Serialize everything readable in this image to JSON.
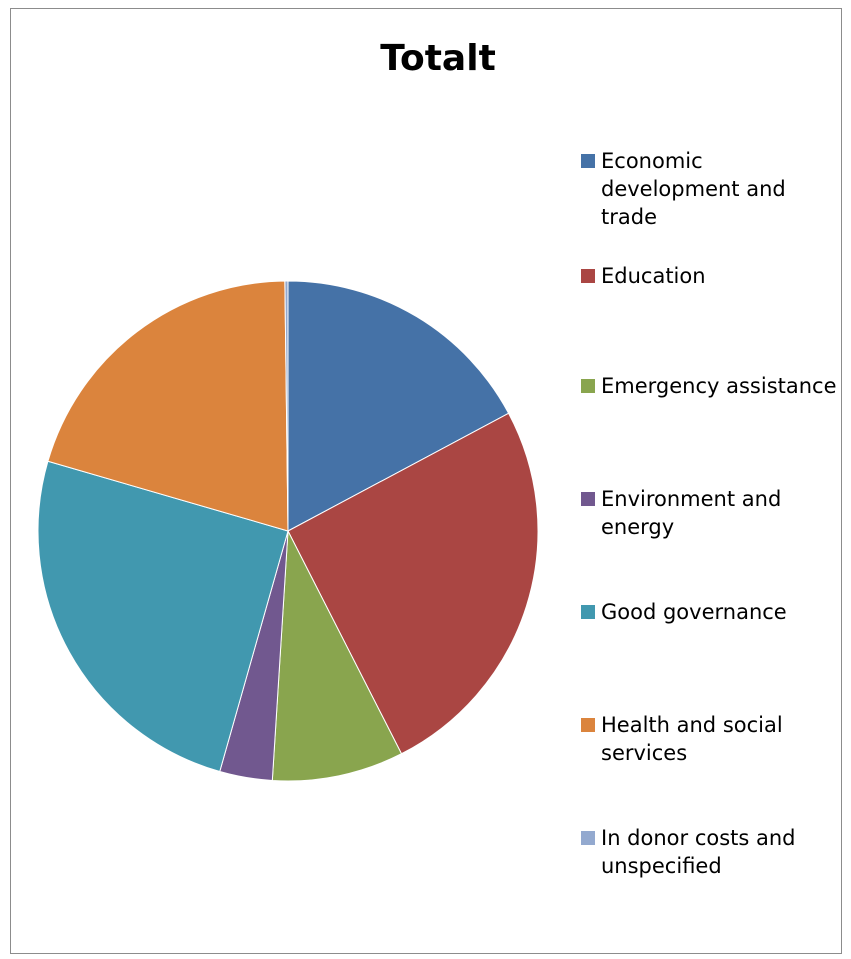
{
  "chart_data": {
    "type": "pie",
    "title": "Totalt",
    "legend_position": "right",
    "slices": [
      {
        "label": "Economic development and trade",
        "value": 17.2,
        "color": "#4572A7"
      },
      {
        "label": "Education",
        "value": 25.3,
        "color": "#AA4643"
      },
      {
        "label": "Emergency assistance",
        "value": 8.5,
        "color": "#89A54E"
      },
      {
        "label": "Environment and energy",
        "value": 3.4,
        "color": "#71588F"
      },
      {
        "label": "Good governance",
        "value": 25.1,
        "color": "#4198AF"
      },
      {
        "label": "Health and social services",
        "value": 20.3,
        "color": "#DB843D"
      },
      {
        "label": "In donor costs and unspecified",
        "value": 0.2,
        "color": "#93A9CF"
      }
    ]
  },
  "legend": {
    "items": [
      {
        "label": "Economic\ndevelopment and\ntrade",
        "color": "#4572A7"
      },
      {
        "label": "Education",
        "color": "#AA4643"
      },
      {
        "label": "Emergency assistance",
        "color": "#89A54E"
      },
      {
        "label": "Environment and\nenergy",
        "color": "#71588F"
      },
      {
        "label": "Good governance",
        "color": "#4198AF"
      },
      {
        "label": "Health and social\nservices",
        "color": "#DB843D"
      },
      {
        "label": "In donor costs and\nunspecified",
        "color": "#93A9CF"
      }
    ]
  }
}
